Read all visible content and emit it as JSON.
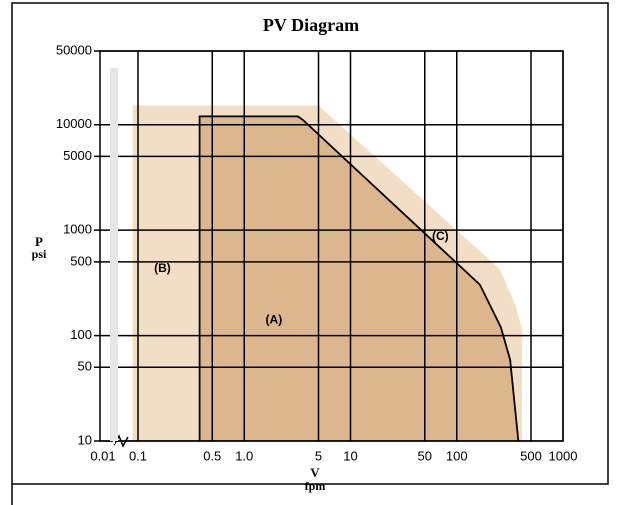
{
  "chart_data": {
    "type": "area",
    "title": "PV Diagram",
    "xlabel": [
      "V",
      "fpm"
    ],
    "ylabel": [
      "P",
      "psi"
    ],
    "log_x": true,
    "log_y": true,
    "grid": true,
    "xlim": [
      0.01,
      1000
    ],
    "x_break": [
      0.01,
      0.1
    ],
    "ylim": [
      10,
      50000
    ],
    "xticks": [
      0.01,
      0.1,
      0.5,
      {
        "value": 1,
        "label": "1.0"
      },
      5,
      10,
      50,
      100,
      500,
      1000
    ],
    "yticks": [
      10,
      50,
      100,
      500,
      1000,
      5000,
      10000,
      50000
    ],
    "series": [
      {
        "color": "#f2dec4",
        "fill": true,
        "x": [
          0.07,
          0.07,
          5,
          255,
          360,
          410,
          410
        ],
        "y": [
          10,
          15200,
          15200,
          425,
          190,
          115,
          10
        ]
      },
      {
        "color": "#dcb68c",
        "fill": true,
        "x": [
          0.38,
          0.38,
          3.2,
          3.6,
          165,
          260,
          318,
          380
        ],
        "y": [
          10,
          12000,
          12000,
          11000,
          304,
          120,
          59,
          10
        ]
      },
      {
        "color": "#000000",
        "fill": false,
        "x": [
          0.38,
          0.38,
          3.2,
          3.6,
          165,
          260,
          318,
          380
        ],
        "y": [
          10,
          12000,
          12000,
          11000,
          304,
          120,
          59,
          10
        ]
      }
    ],
    "annotations": [
      {
        "text": "(A)",
        "x": 1.9,
        "y": 140
      },
      {
        "text": "(B)",
        "x": 0.17,
        "y": 430
      },
      {
        "text": "(C)",
        "x": 70,
        "y": 860
      }
    ]
  }
}
